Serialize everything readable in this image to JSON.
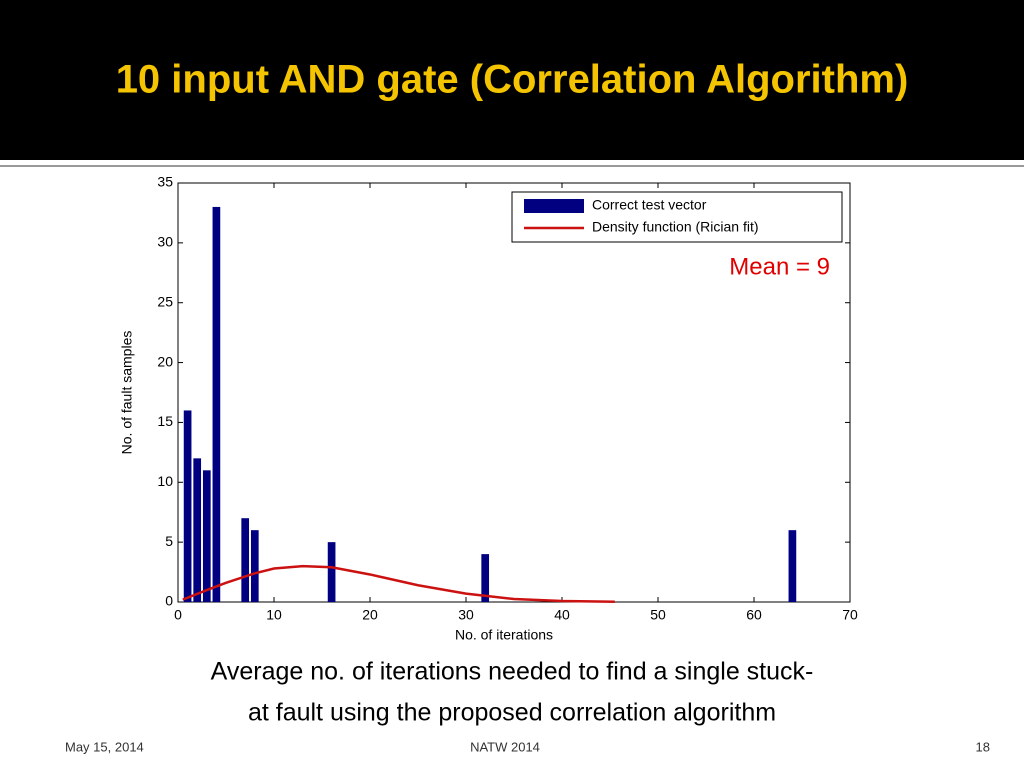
{
  "slide": {
    "title": "10 input AND gate (Correlation Algorithm)",
    "caption": [
      "Average no. of iterations needed to find a single stuck-",
      "at fault using the proposed correlation algorithm"
    ],
    "footer_date": "May 15, 2014",
    "footer_event": "NATW 2014",
    "page_number": "18"
  },
  "chart_data": {
    "type": "bar",
    "xlabel": "No. of iterations",
    "ylabel": "No. of fault samples",
    "annotation": "Mean = 9",
    "xlim": [
      0,
      70
    ],
    "xticks": [
      0,
      10,
      20,
      30,
      40,
      50,
      60,
      70
    ],
    "ylim": [
      0,
      35
    ],
    "yticks": [
      0,
      5,
      10,
      15,
      20,
      25,
      30,
      35
    ],
    "legend": "upper right",
    "series": [
      {
        "name": "Correct test vector",
        "type": "bar",
        "color": "#000080",
        "x": [
          1,
          2,
          3,
          4,
          7,
          8,
          16,
          32,
          64
        ],
        "values": [
          16,
          12,
          11,
          33,
          7,
          6,
          5,
          4,
          6
        ]
      },
      {
        "name": "Density function (Rician fit)",
        "type": "line",
        "color": "#cc1111",
        "x": [
          0.5,
          3,
          5,
          8,
          10,
          13,
          16,
          20,
          25,
          30,
          35,
          40,
          45.5
        ],
        "values": [
          0.2,
          1.0,
          1.6,
          2.4,
          2.8,
          3.0,
          2.9,
          2.3,
          1.4,
          0.7,
          0.25,
          0.08,
          0.02
        ]
      }
    ]
  }
}
